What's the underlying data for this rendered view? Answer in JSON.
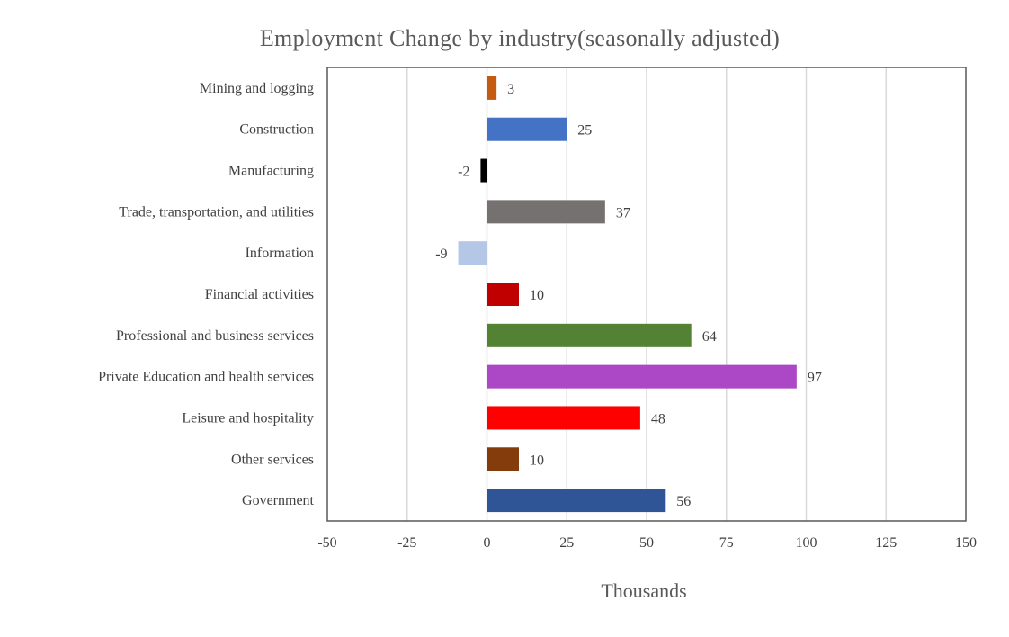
{
  "chart_data": {
    "type": "bar",
    "orientation": "horizontal",
    "title": "Employment Change by industry(seasonally adjusted)",
    "xlabel": "Thousands",
    "ylabel": "",
    "xlim": [
      -50,
      150
    ],
    "x_ticks": [
      -50,
      -25,
      0,
      25,
      50,
      75,
      100,
      125,
      150
    ],
    "grid": "vertical",
    "legend": "none",
    "categories": [
      "Mining and logging",
      "Construction",
      "Manufacturing",
      "Trade, transportation, and utilities",
      "Information",
      "Financial activities",
      "Professional and business services",
      "Private Education and health services",
      "Leisure and hospitality",
      "Other services",
      "Government"
    ],
    "values": [
      3,
      25,
      -2,
      37,
      -9,
      10,
      64,
      97,
      48,
      10,
      56
    ],
    "colors": [
      "#c55a11",
      "#4472c4",
      "#000000",
      "#767171",
      "#b4c7e7",
      "#c00000",
      "#548235",
      "#ac47c5",
      "#ff0000",
      "#843c0c",
      "#2f5597"
    ]
  }
}
